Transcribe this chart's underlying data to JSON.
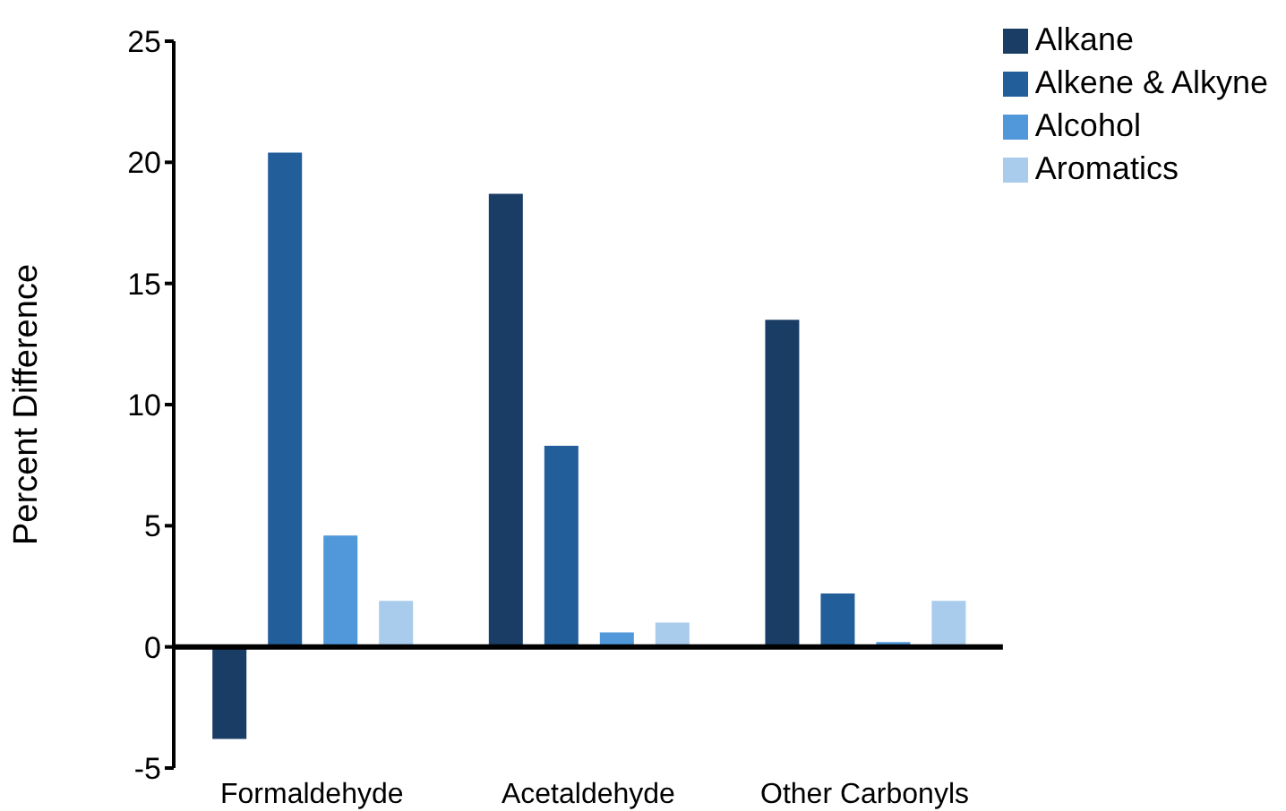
{
  "chart_data": {
    "type": "bar",
    "ylabel": "Percent Difference",
    "categories": [
      "Formaldehyde",
      "Acetaldehyde",
      "Other Carbonyls"
    ],
    "series": [
      {
        "name": "Alkane",
        "color": "#1a3d66",
        "values": [
          -3.8,
          18.7,
          13.5
        ]
      },
      {
        "name": "Alkene & Alkyne",
        "color": "#215e9a",
        "values": [
          20.4,
          8.3,
          2.2
        ]
      },
      {
        "name": "Alcohol",
        "color": "#5098da",
        "values": [
          4.6,
          0.6,
          0.2
        ]
      },
      {
        "name": "Aromatics",
        "color": "#a9cbec",
        "values": [
          1.9,
          1.0,
          1.9
        ]
      }
    ],
    "ylim": [
      -5,
      25
    ],
    "yticks": [
      -5,
      0,
      5,
      10,
      15,
      20,
      25
    ],
    "legend": "top right"
  }
}
